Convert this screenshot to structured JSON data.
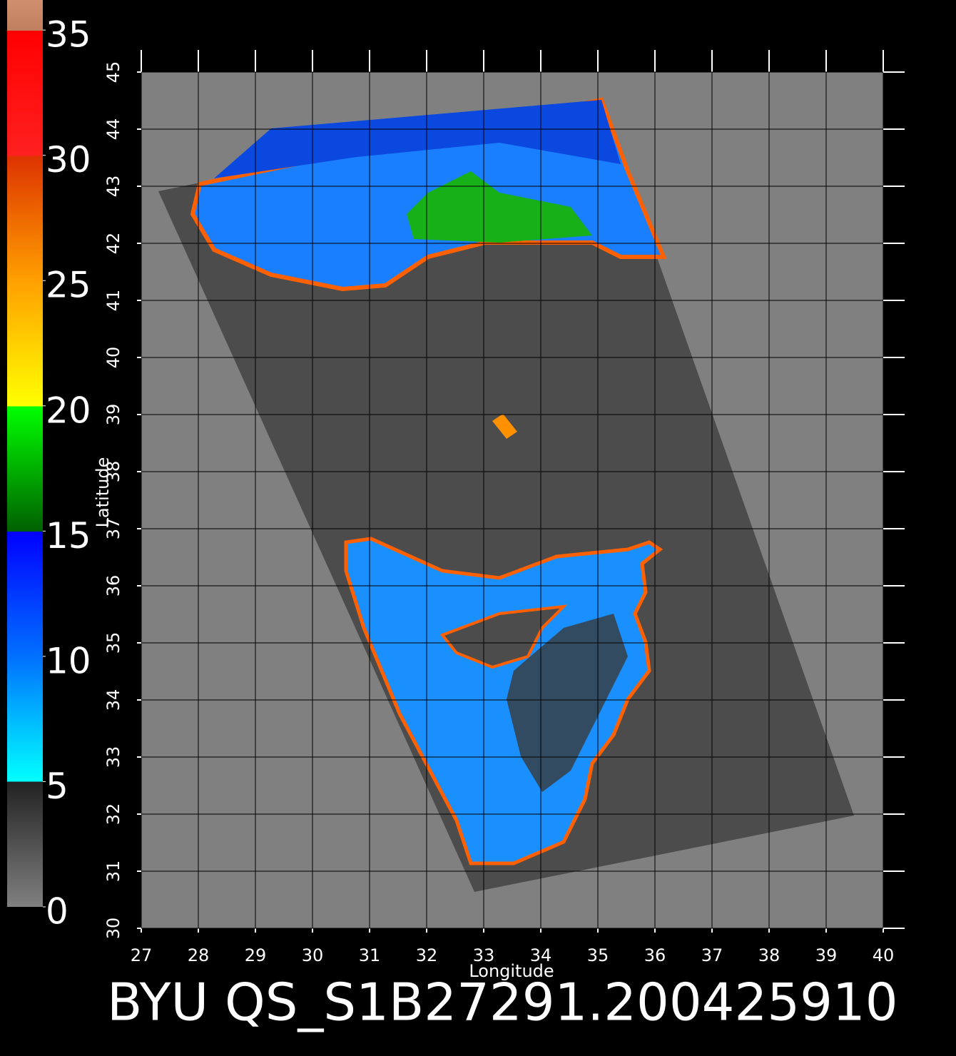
{
  "chart_data": {
    "type": "map",
    "title": "BYU QS_S1B27291.200425910",
    "x_label": "Longitude",
    "y_label": "Latitude",
    "xlim": [
      27,
      40
    ],
    "ylim": [
      30,
      45
    ],
    "xticks": [
      27,
      28,
      29,
      30,
      31,
      32,
      33,
      34,
      35,
      36,
      37,
      38,
      39,
      40
    ],
    "yticks": [
      30,
      31,
      32,
      33,
      34,
      35,
      36,
      37,
      38,
      39,
      40,
      41,
      42,
      43,
      44,
      45
    ],
    "grid": true,
    "colorbar": {
      "lim": [
        0,
        36.2
      ],
      "ticks": [
        0,
        5,
        10,
        15,
        20,
        25,
        30,
        35
      ]
    }
  }
}
